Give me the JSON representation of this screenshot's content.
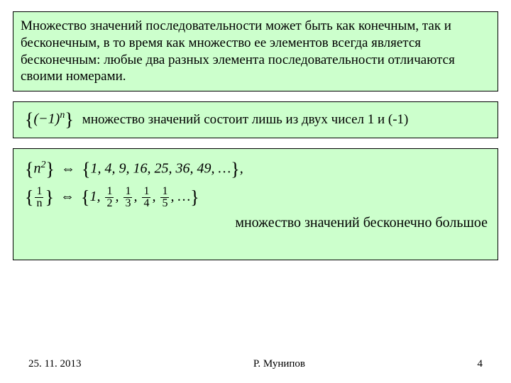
{
  "colors": {
    "panel_green_bg": "#ccffcc",
    "panel_border": "#000000",
    "page_bg": "#ffffff",
    "text": "#000000"
  },
  "typography": {
    "body_fontsize_pt": 15,
    "formula_fontsize_pt": 15,
    "footer_fontsize_pt": 11,
    "font_family": "Times New Roman"
  },
  "panel1": {
    "text": "Множество значений последовательности может быть как конечным, так и бесконечным, в то время как множество ее элементов всегда является бесконечным: любые два разных элемента последовательности отличаются своими номерами."
  },
  "panel2": {
    "formula_lhs": "{(−1)",
    "formula_sup": "n",
    "formula_rhs": "}",
    "comment": "множество значений состоит лишь из двух чисел 1 и (-1)"
  },
  "panel3": {
    "line1_lhs": "{n",
    "line1_sup": "2",
    "line1_mid": "} ⇔ {1, 4, 9, 16, 25, 36, 49, …},",
    "line2": "{ 1/n } ⇔ { 1, 1/2, 1/3, 1/4, 1/5, … }",
    "line2_frac_lhs": {
      "num": "1",
      "den": "n"
    },
    "line2_set": [
      {
        "plain": "1"
      },
      {
        "num": "1",
        "den": "2"
      },
      {
        "num": "1",
        "den": "3"
      },
      {
        "num": "1",
        "den": "4"
      },
      {
        "num": "1",
        "den": "5"
      }
    ],
    "right_comment": "множество значений бесконечно большое"
  },
  "footer": {
    "date": "25. 11. 2013",
    "author": "Р. Мунипов",
    "page": "4"
  }
}
